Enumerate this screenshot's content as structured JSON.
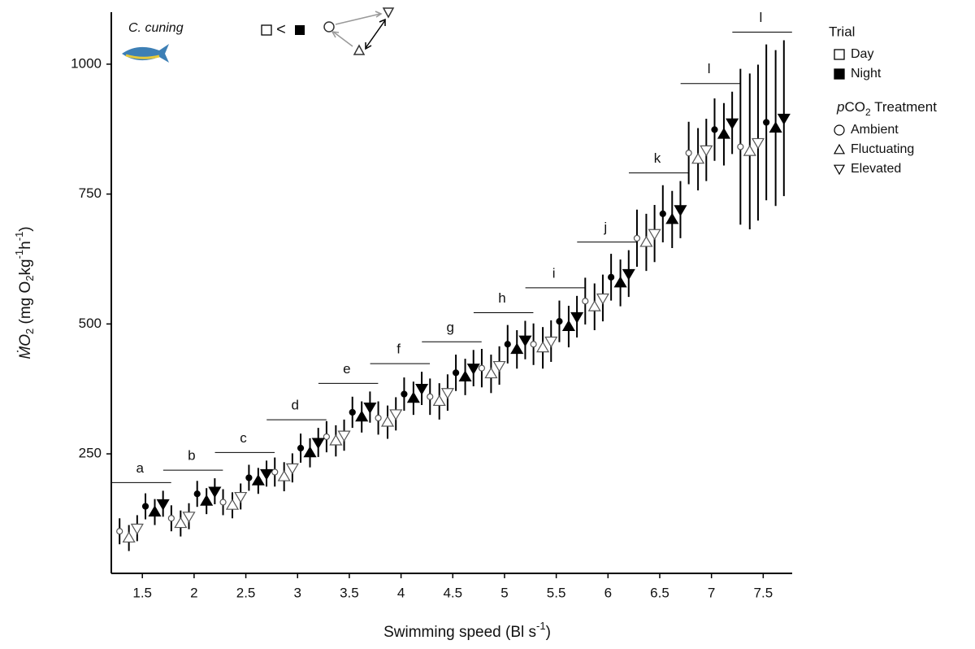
{
  "chart_data": {
    "type": "errorbar-dodge",
    "x_label": {
      "main": "Swimming speed  (Bl s",
      "sup": "-1",
      "end": ")"
    },
    "y_label": [
      "ṀO",
      "2",
      " (mg O",
      "2",
      "kg",
      "-1",
      "h",
      "-1",
      ")"
    ],
    "species": "C. cuning",
    "inset_relation": "<",
    "x": [
      1.5,
      2,
      2.5,
      3,
      3.5,
      4,
      4.5,
      5,
      5.5,
      6,
      6.5,
      7,
      7.5
    ],
    "xlim": [
      1.2,
      7.78
    ],
    "ylim": [
      20,
      1100
    ],
    "xticks": [
      1.5,
      2,
      2.5,
      3,
      3.5,
      4,
      4.5,
      5,
      5.5,
      6,
      6.5,
      7,
      7.5
    ],
    "yticks": [
      250,
      500,
      750,
      1000
    ],
    "group_letters": [
      "a",
      "b",
      "c",
      "d",
      "e",
      "f",
      "g",
      "h",
      "i",
      "j",
      "k",
      "l",
      "l"
    ],
    "legend_trial_title": "Trial",
    "legend_treatment_title": {
      "italic": "p",
      "main": "CO",
      "sub": "2",
      "rest": " Treatment"
    },
    "treatments": [
      {
        "name": "Ambient",
        "marker": "circle"
      },
      {
        "name": "Fluctuating",
        "marker": "triangle-up"
      },
      {
        "name": "Elevated",
        "marker": "triangle-down"
      }
    ],
    "trials": [
      {
        "name": "Day",
        "color": "#ffffff",
        "treatments": [
          {
            "values": [
              101,
              126,
              157,
              215,
              283,
              319,
              360,
              415,
              461,
              544,
              665,
              829,
              841
            ],
            "errors": [
              25,
              25,
              25,
              28,
              30,
              32,
              35,
              37,
              40,
              45,
              55,
              60,
              150
            ]
          },
          {
            "values": [
              88,
              116,
              151,
              206,
              275,
              311,
              351,
              404,
              454,
              533,
              657,
              817,
              832
            ],
            "errors": [
              25,
              25,
              25,
              28,
              30,
              32,
              35,
              37,
              40,
              45,
              55,
              60,
              150
            ]
          },
          {
            "values": [
              107,
              130,
              168,
              223,
              286,
              327,
              368,
              420,
              467,
              550,
              674,
              835,
              849
            ],
            "errors": [
              25,
              25,
              25,
              28,
              30,
              32,
              35,
              37,
              40,
              45,
              55,
              60,
              150
            ]
          }
        ]
      },
      {
        "name": "Night",
        "color": "#000000",
        "treatments": [
          {
            "values": [
              149,
              173,
              204,
              261,
              330,
              365,
              406,
              461,
              505,
              590,
              712,
              874,
              888
            ],
            "errors": [
              25,
              25,
              25,
              28,
              30,
              32,
              35,
              37,
              40,
              45,
              55,
              60,
              150
            ]
          },
          {
            "values": [
              138,
              159,
              198,
              252,
              321,
              357,
              398,
              451,
              495,
              579,
              701,
              865,
              877
            ],
            "errors": [
              25,
              25,
              25,
              28,
              30,
              32,
              35,
              37,
              40,
              45,
              55,
              60,
              150
            ]
          },
          {
            "values": [
              154,
              178,
              212,
              272,
              340,
              376,
              415,
              469,
              514,
              597,
              720,
              887,
              896
            ],
            "errors": [
              25,
              25,
              25,
              28,
              30,
              32,
              35,
              37,
              40,
              45,
              55,
              60,
              150
            ]
          }
        ]
      }
    ]
  }
}
